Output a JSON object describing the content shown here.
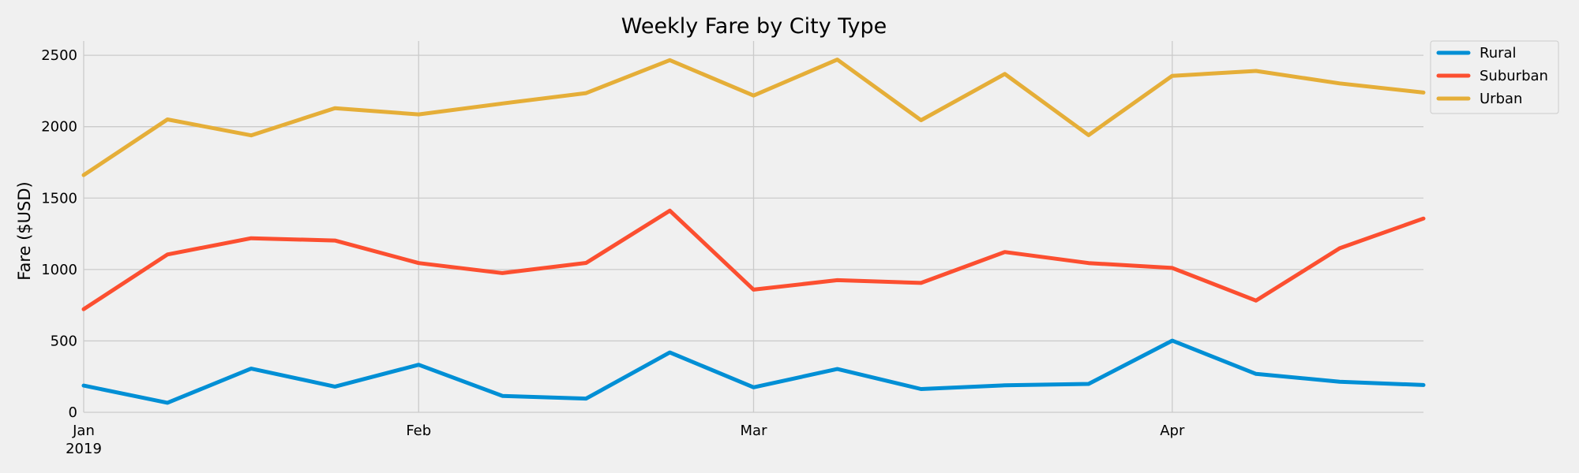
{
  "chart_data": {
    "type": "line",
    "title": "Weekly Fare by City Type",
    "xlabel": "",
    "ylabel": "Fare ($USD)",
    "ylim": [
      0,
      2600
    ],
    "yticks": [
      0,
      500,
      1000,
      1500,
      2000,
      2500
    ],
    "x_tick_labels": [
      {
        "label": "Jan",
        "sub": "2019",
        "week": 0
      },
      {
        "label": "Feb",
        "sub": "",
        "week": 4
      },
      {
        "label": "Mar",
        "sub": "",
        "week": 8
      },
      {
        "label": "Apr",
        "sub": "",
        "week": 13
      }
    ],
    "x_dates": [
      "2019-01-06",
      "2019-01-13",
      "2019-01-20",
      "2019-01-27",
      "2019-02-03",
      "2019-02-10",
      "2019-02-17",
      "2019-02-24",
      "2019-03-03",
      "2019-03-10",
      "2019-03-17",
      "2019-03-24",
      "2019-03-31",
      "2019-04-07",
      "2019-04-14",
      "2019-04-21",
      "2019-04-28"
    ],
    "grid": true,
    "legend_position": "outside-top-right",
    "series": [
      {
        "name": "Rural",
        "color": "#008fd5",
        "values": [
          187,
          67,
          306,
          180,
          333,
          115,
          96,
          419,
          175,
          303,
          163,
          189,
          199,
          502,
          269,
          214,
          191
        ]
      },
      {
        "name": "Suburban",
        "color": "#fc4f30",
        "values": [
          722,
          1105,
          1219,
          1203,
          1045,
          975,
          1046,
          1412,
          859,
          925,
          906,
          1122,
          1045,
          1011,
          782,
          1149,
          1357
        ]
      },
      {
        "name": "Urban",
        "color": "#e5ae38",
        "values": [
          1661,
          2051,
          1939,
          2129,
          2086,
          2162,
          2235,
          2466,
          2218,
          2470,
          2045,
          2369,
          1941,
          2356,
          2390,
          2303,
          2239
        ]
      }
    ]
  }
}
